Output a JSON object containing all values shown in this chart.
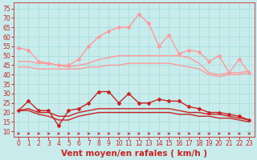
{
  "xlabel": "Vent moyen/en rafales ( km/h )",
  "background_color": "#c8ecec",
  "grid_color": "#aadddd",
  "x_ticks": [
    0,
    1,
    2,
    3,
    4,
    5,
    6,
    7,
    8,
    9,
    10,
    11,
    12,
    13,
    14,
    15,
    16,
    17,
    18,
    19,
    20,
    21,
    22,
    23
  ],
  "y_ticks": [
    10,
    15,
    20,
    25,
    30,
    35,
    40,
    45,
    50,
    55,
    60,
    65,
    70,
    75
  ],
  "ylim": [
    7,
    78
  ],
  "xlim": [
    -0.5,
    23.5
  ],
  "series": [
    {
      "name": "rafales_max",
      "color": "#ff9999",
      "lw": 1.0,
      "marker": "D",
      "markersize": 2.0,
      "values": [
        54,
        53,
        47,
        46,
        45,
        45,
        48,
        55,
        60,
        63,
        65,
        65,
        72,
        67,
        55,
        61,
        51,
        53,
        52,
        47,
        50,
        41,
        48,
        41
      ]
    },
    {
      "name": "rafales_mean",
      "color": "#ff9999",
      "lw": 1.0,
      "marker": null,
      "values": [
        47,
        47,
        46,
        46,
        45,
        44,
        45,
        46,
        48,
        49,
        50,
        50,
        50,
        50,
        50,
        50,
        50,
        49,
        46,
        41,
        40,
        41,
        41,
        42
      ]
    },
    {
      "name": "rafales_min",
      "color": "#ff9999",
      "lw": 1.0,
      "marker": null,
      "values": [
        44,
        44,
        43,
        43,
        43,
        43,
        43,
        44,
        44,
        45,
        45,
        46,
        46,
        46,
        46,
        46,
        45,
        44,
        43,
        40,
        39,
        40,
        40,
        41
      ]
    },
    {
      "name": "vent_max",
      "color": "#cc2222",
      "lw": 1.0,
      "marker": "D",
      "markersize": 2.0,
      "values": [
        21,
        26,
        21,
        21,
        13,
        21,
        22,
        25,
        31,
        31,
        25,
        30,
        25,
        25,
        27,
        26,
        26,
        23,
        22,
        20,
        20,
        19,
        18,
        16
      ]
    },
    {
      "name": "vent_mean",
      "color": "#cc2222",
      "lw": 1.0,
      "marker": null,
      "values": [
        21,
        22,
        20,
        20,
        18,
        18,
        20,
        21,
        22,
        22,
        22,
        22,
        22,
        22,
        22,
        22,
        21,
        20,
        20,
        19,
        19,
        18,
        17,
        16
      ]
    },
    {
      "name": "vent_min",
      "color": "#cc2222",
      "lw": 1.0,
      "marker": null,
      "values": [
        21,
        21,
        19,
        18,
        16,
        16,
        18,
        19,
        20,
        20,
        20,
        20,
        20,
        20,
        20,
        20,
        19,
        19,
        18,
        18,
        17,
        17,
        16,
        15
      ]
    }
  ],
  "arrow_color": "#cc2222",
  "xlabel_color": "#cc2222",
  "xlabel_fontsize": 7.5,
  "tick_color": "#cc2222",
  "tick_fontsize": 5.5,
  "spine_color": "#cc4444"
}
